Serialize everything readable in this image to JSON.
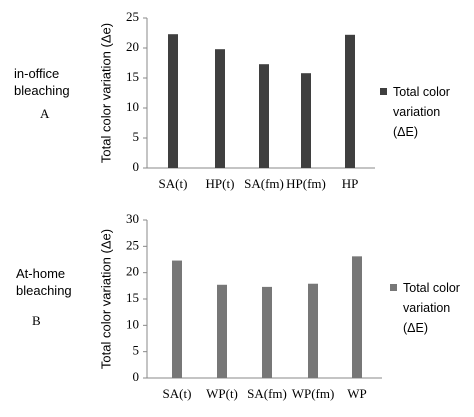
{
  "chart_data": [
    {
      "type": "bar",
      "annotation": "in-office bleaching",
      "panel_label": "A",
      "y_label": "Total color variation (Δe)",
      "categories": [
        "SA(t)",
        "HP(t)",
        "SA(fm)",
        "HP(fm)",
        "HP"
      ],
      "series": [
        {
          "name": "Total color variation (ΔE)",
          "color": "#3f3f3f",
          "values": [
            22.3,
            19.8,
            17.3,
            15.8,
            22.2
          ]
        }
      ],
      "ylim": [
        0,
        25
      ],
      "yticks": [
        0,
        5,
        10,
        15,
        20,
        25
      ]
    },
    {
      "type": "bar",
      "annotation": "At-home bleaching",
      "panel_label": "B",
      "y_label": "Total color variation (Δe)",
      "categories": [
        "SA(t)",
        "WP(t)",
        "SA(fm)",
        "WP(fm)",
        "WP"
      ],
      "series": [
        {
          "name": "Total color variation (ΔE)",
          "color": "#777777",
          "values": [
            22.3,
            17.7,
            17.3,
            17.9,
            23.1
          ]
        }
      ],
      "ylim": [
        0,
        30
      ],
      "yticks": [
        0,
        5,
        10,
        15,
        20,
        25,
        30
      ]
    }
  ]
}
